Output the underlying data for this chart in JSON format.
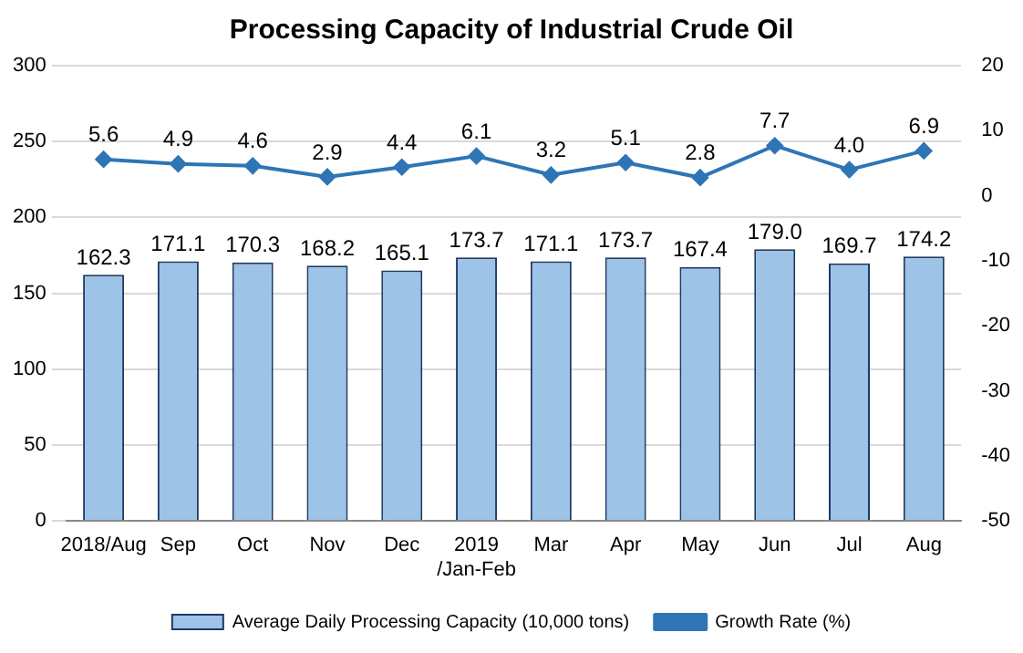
{
  "chart_data": {
    "type": "bar",
    "title": "Processing Capacity of Industrial Crude Oil",
    "categories": [
      "2018/Aug",
      "Sep",
      "Oct",
      "Nov",
      "Dec",
      "2019\n/Jan-Feb",
      "Mar",
      "Apr",
      "May",
      "Jun",
      "Jul",
      "Aug"
    ],
    "series": [
      {
        "name": "Average Daily Processing Capacity (10,000 tons)",
        "color": "#9dc3e6",
        "values": [
          162.3,
          171.1,
          170.3,
          168.2,
          165.1,
          173.7,
          171.1,
          173.7,
          167.4,
          179.0,
          169.7,
          174.2
        ],
        "value_labels": [
          "162.3",
          "171.1",
          "170.3",
          "168.2",
          "165.1",
          "173.7",
          "171.1",
          "173.7",
          "167.4",
          "179.0",
          "169.7",
          "174.2"
        ]
      },
      {
        "name": "Growth Rate (%)",
        "type": "line",
        "axis": "y2",
        "color": "#2e75b6",
        "marker": "diamond",
        "values": [
          5.6,
          4.9,
          4.6,
          2.9,
          4.4,
          6.1,
          3.2,
          5.1,
          2.8,
          7.7,
          4.0,
          6.9
        ],
        "value_labels": [
          "5.6",
          "4.9",
          "4.6",
          "2.9",
          "4.4",
          "6.1",
          "3.2",
          "5.1",
          "2.8",
          "7.7",
          "4.0",
          "6.9"
        ]
      }
    ],
    "ylim": [
      0,
      300
    ],
    "yticks": [
      0,
      50,
      100,
      150,
      200,
      250,
      300
    ],
    "y2lim": [
      -50,
      20
    ],
    "y2ticks": [
      -50,
      -40,
      -30,
      -20,
      -10,
      0,
      10,
      20
    ],
    "grid": "y",
    "legend": "bottom"
  }
}
